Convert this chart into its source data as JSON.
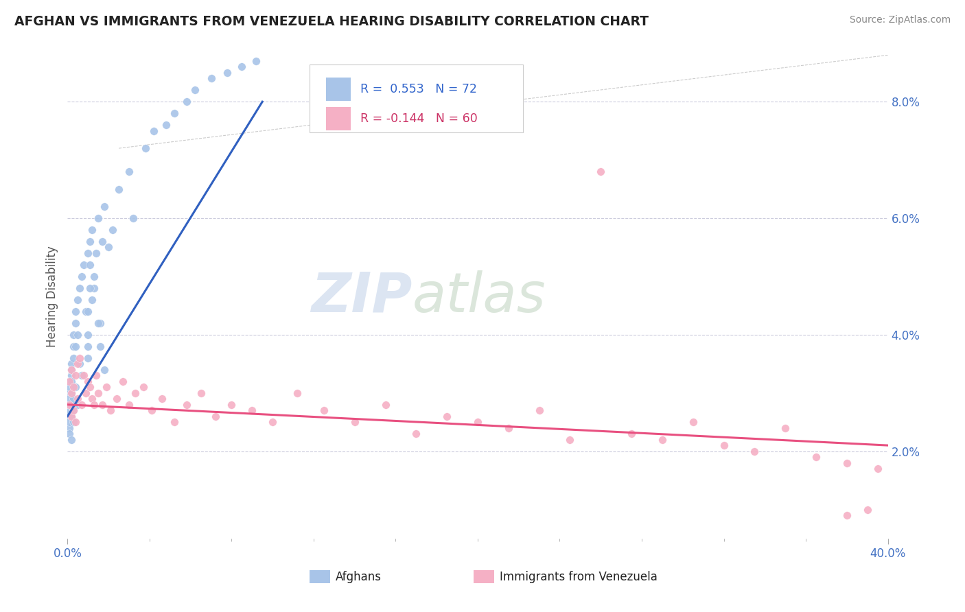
{
  "title": "AFGHAN VS IMMIGRANTS FROM VENEZUELA HEARING DISABILITY CORRELATION CHART",
  "source": "Source: ZipAtlas.com",
  "ylabel": "Hearing Disability",
  "ylabel_right_ticks": [
    "2.0%",
    "4.0%",
    "6.0%",
    "8.0%"
  ],
  "ylabel_right_vals": [
    0.02,
    0.04,
    0.06,
    0.08
  ],
  "x_min": 0.0,
  "x_max": 0.4,
  "y_min": 0.005,
  "y_max": 0.088,
  "color_blue": "#a8c4e8",
  "color_pink": "#f5b0c5",
  "color_blue_line": "#3060c0",
  "color_pink_line": "#e85080",
  "color_blue_text": "#3366cc",
  "color_pink_text": "#cc3366",
  "watermark_zip": "ZIP",
  "watermark_atlas": "atlas",
  "afghans_x": [
    0.001,
    0.001,
    0.001,
    0.001,
    0.001,
    0.001,
    0.001,
    0.001,
    0.001,
    0.001,
    0.002,
    0.002,
    0.002,
    0.002,
    0.002,
    0.002,
    0.002,
    0.002,
    0.003,
    0.003,
    0.003,
    0.003,
    0.003,
    0.003,
    0.004,
    0.004,
    0.004,
    0.004,
    0.005,
    0.005,
    0.005,
    0.006,
    0.006,
    0.007,
    0.007,
    0.008,
    0.009,
    0.01,
    0.01,
    0.011,
    0.012,
    0.013,
    0.015,
    0.016,
    0.018,
    0.02,
    0.022,
    0.025,
    0.03,
    0.032,
    0.038,
    0.042,
    0.048,
    0.052,
    0.058,
    0.062,
    0.07,
    0.078,
    0.085,
    0.092,
    0.01,
    0.01,
    0.01,
    0.011,
    0.011,
    0.012,
    0.013,
    0.014,
    0.015,
    0.016,
    0.017,
    0.018
  ],
  "afghans_y": [
    0.028,
    0.03,
    0.026,
    0.024,
    0.032,
    0.027,
    0.025,
    0.029,
    0.031,
    0.023,
    0.033,
    0.035,
    0.028,
    0.03,
    0.026,
    0.032,
    0.034,
    0.022,
    0.036,
    0.038,
    0.029,
    0.027,
    0.04,
    0.025,
    0.042,
    0.038,
    0.031,
    0.044,
    0.046,
    0.04,
    0.028,
    0.048,
    0.035,
    0.05,
    0.033,
    0.052,
    0.044,
    0.054,
    0.038,
    0.056,
    0.058,
    0.048,
    0.06,
    0.042,
    0.062,
    0.055,
    0.058,
    0.065,
    0.068,
    0.06,
    0.072,
    0.075,
    0.076,
    0.078,
    0.08,
    0.082,
    0.084,
    0.085,
    0.086,
    0.087,
    0.036,
    0.04,
    0.044,
    0.048,
    0.052,
    0.046,
    0.05,
    0.054,
    0.042,
    0.038,
    0.056,
    0.034
  ],
  "venezuela_x": [
    0.001,
    0.001,
    0.002,
    0.002,
    0.002,
    0.003,
    0.003,
    0.004,
    0.004,
    0.005,
    0.005,
    0.006,
    0.007,
    0.008,
    0.009,
    0.01,
    0.011,
    0.012,
    0.013,
    0.014,
    0.015,
    0.017,
    0.019,
    0.021,
    0.024,
    0.027,
    0.03,
    0.033,
    0.037,
    0.041,
    0.046,
    0.052,
    0.058,
    0.065,
    0.072,
    0.08,
    0.09,
    0.1,
    0.112,
    0.125,
    0.14,
    0.155,
    0.17,
    0.185,
    0.2,
    0.215,
    0.23,
    0.245,
    0.26,
    0.275,
    0.29,
    0.305,
    0.32,
    0.335,
    0.35,
    0.365,
    0.38,
    0.395,
    0.39,
    0.38
  ],
  "venezuela_y": [
    0.028,
    0.032,
    0.03,
    0.034,
    0.026,
    0.031,
    0.027,
    0.033,
    0.025,
    0.035,
    0.029,
    0.036,
    0.028,
    0.033,
    0.03,
    0.032,
    0.031,
    0.029,
    0.028,
    0.033,
    0.03,
    0.028,
    0.031,
    0.027,
    0.029,
    0.032,
    0.028,
    0.03,
    0.031,
    0.027,
    0.029,
    0.025,
    0.028,
    0.03,
    0.026,
    0.028,
    0.027,
    0.025,
    0.03,
    0.027,
    0.025,
    0.028,
    0.023,
    0.026,
    0.025,
    0.024,
    0.027,
    0.022,
    0.068,
    0.023,
    0.022,
    0.025,
    0.021,
    0.02,
    0.024,
    0.019,
    0.018,
    0.017,
    0.01,
    0.009
  ]
}
